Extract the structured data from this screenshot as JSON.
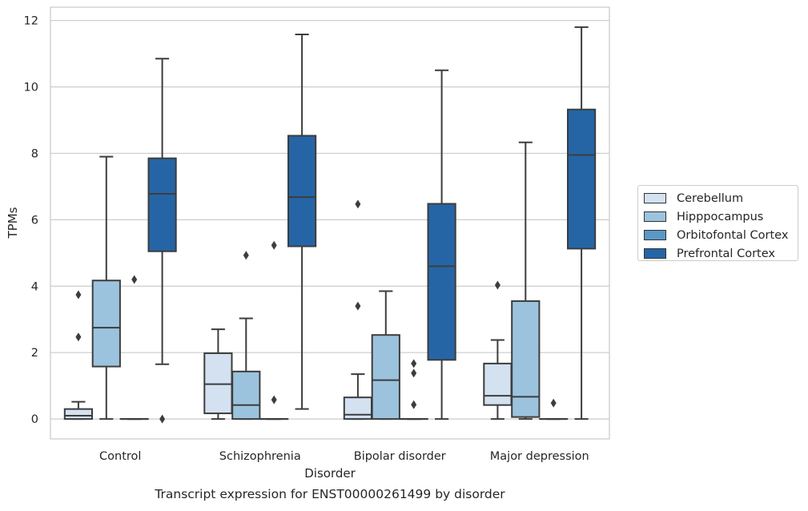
{
  "chart_data": {
    "type": "box",
    "title": "",
    "caption": "Transcript expression for ENST00000261499 by disorder",
    "xlabel": "Disorder",
    "ylabel": "TPMs",
    "ylim": [
      -0.6,
      12.4
    ],
    "yticks": [
      0,
      2,
      4,
      6,
      8,
      10,
      12
    ],
    "grid": true,
    "legend_position": "right",
    "categories": [
      "Control",
      "Schizophrenia",
      "Bipolar disorder",
      "Major depression"
    ],
    "series": [
      {
        "name": "Cerebellum",
        "color": "#d3e1f1",
        "boxes": [
          {
            "q1": 0.0,
            "median": 0.1,
            "q3": 0.3,
            "whisker_low": 0.0,
            "whisker_high": 0.52,
            "outliers": [
              2.47,
              3.74
            ]
          },
          {
            "q1": 0.17,
            "median": 1.05,
            "q3": 1.98,
            "whisker_low": 0.0,
            "whisker_high": 2.7,
            "outliers": []
          },
          {
            "q1": 0.0,
            "median": 0.13,
            "q3": 0.65,
            "whisker_low": 0.0,
            "whisker_high": 1.35,
            "outliers": [
              3.4,
              6.47
            ]
          },
          {
            "q1": 0.42,
            "median": 0.7,
            "q3": 1.67,
            "whisker_low": 0.0,
            "whisker_high": 2.38,
            "outliers": [
              4.03
            ]
          }
        ]
      },
      {
        "name": "Hipppocampus",
        "color": "#9cc3de",
        "boxes": [
          {
            "q1": 1.58,
            "median": 2.75,
            "q3": 4.17,
            "whisker_low": 0.0,
            "whisker_high": 7.9,
            "outliers": []
          },
          {
            "q1": 0.0,
            "median": 0.42,
            "q3": 1.43,
            "whisker_low": 0.0,
            "whisker_high": 3.03,
            "outliers": [
              4.93
            ]
          },
          {
            "q1": 0.0,
            "median": 1.17,
            "q3": 2.53,
            "whisker_low": 0.0,
            "whisker_high": 3.85,
            "outliers": []
          },
          {
            "q1": 0.06,
            "median": 0.67,
            "q3": 3.55,
            "whisker_low": 0.0,
            "whisker_high": 8.33,
            "outliers": []
          }
        ]
      },
      {
        "name": "Orbitofontal Cortex",
        "color": "#5b98c6",
        "boxes": [
          {
            "q1": 0.0,
            "median": 0.0,
            "q3": 0.0,
            "whisker_low": 0.0,
            "whisker_high": 0.0,
            "outliers": [
              4.2
            ]
          },
          {
            "q1": 0.0,
            "median": 0.0,
            "q3": 0.0,
            "whisker_low": 0.0,
            "whisker_high": 0.0,
            "outliers": [
              0.58,
              5.23
            ]
          },
          {
            "q1": 0.0,
            "median": 0.0,
            "q3": 0.0,
            "whisker_low": 0.0,
            "whisker_high": 0.0,
            "outliers": [
              0.43,
              1.38,
              1.67
            ]
          },
          {
            "q1": 0.0,
            "median": 0.0,
            "q3": 0.0,
            "whisker_low": 0.0,
            "whisker_high": 0.0,
            "outliers": [
              0.48
            ]
          }
        ]
      },
      {
        "name": "Prefrontal Cortex",
        "color": "#2565a6",
        "boxes": [
          {
            "q1": 5.05,
            "median": 6.78,
            "q3": 7.85,
            "whisker_low": 1.65,
            "whisker_high": 10.85,
            "outliers": [
              0.0
            ]
          },
          {
            "q1": 5.2,
            "median": 6.68,
            "q3": 8.53,
            "whisker_low": 0.3,
            "whisker_high": 11.58,
            "outliers": []
          },
          {
            "q1": 1.78,
            "median": 4.6,
            "q3": 6.48,
            "whisker_low": 0.0,
            "whisker_high": 10.5,
            "outliers": []
          },
          {
            "q1": 5.13,
            "median": 7.95,
            "q3": 9.32,
            "whisker_low": 0.0,
            "whisker_high": 11.8,
            "outliers": []
          }
        ]
      }
    ]
  }
}
